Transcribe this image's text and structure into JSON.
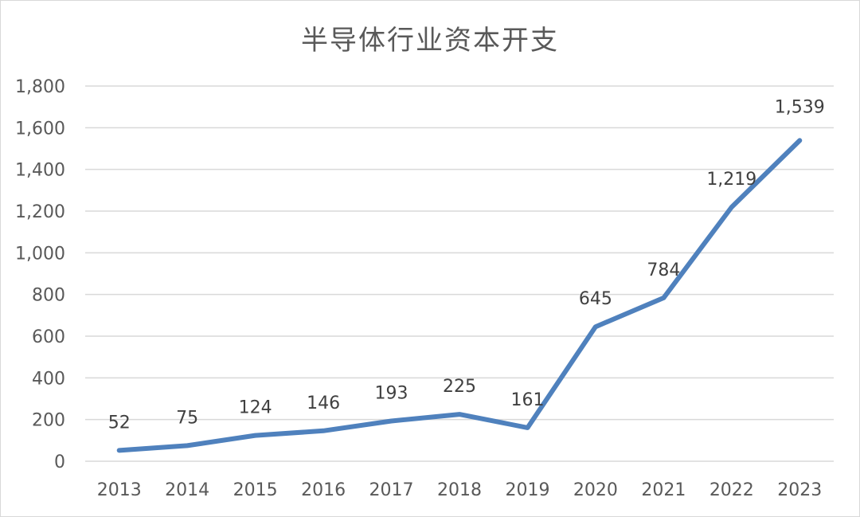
{
  "chart_data": {
    "type": "line",
    "title": "半导体行业资本开支",
    "xlabel": "",
    "ylabel": "",
    "categories": [
      "2013",
      "2014",
      "2015",
      "2016",
      "2017",
      "2018",
      "2019",
      "2020",
      "2021",
      "2022",
      "2023"
    ],
    "series": [
      {
        "values": [
          52,
          75,
          124,
          146,
          193,
          225,
          161,
          645,
          784,
          1219,
          1539
        ],
        "labels": [
          "52",
          "75",
          "124",
          "146",
          "193",
          "225",
          "161",
          "645",
          "784",
          "1,219",
          "1,539"
        ],
        "color": "#4f81bd"
      }
    ],
    "ylim": [
      0,
      1800
    ],
    "yticks": [
      0,
      200,
      400,
      600,
      800,
      1000,
      1200,
      1400,
      1600,
      1800
    ],
    "ytick_labels": [
      "0",
      "200",
      "400",
      "600",
      "800",
      "1,000",
      "1,200",
      "1,400",
      "1,600",
      "1,800"
    ],
    "grid": true,
    "legend": "none",
    "colors": {
      "line": "#4f81bd",
      "grid": "#d9d9d9",
      "text": "#595959"
    }
  }
}
